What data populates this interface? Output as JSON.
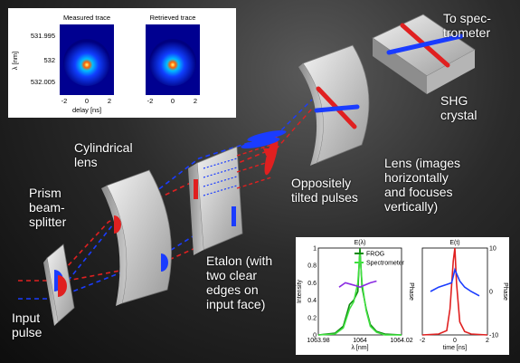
{
  "labels": {
    "to_spectrometer": "To spec-\ntrometer",
    "shg_crystal": "SHG\ncrystal",
    "cylindrical_lens": "Cylindrical\nlens",
    "oppositely_tilted": "Oppositely\ntilted pulses",
    "lens": "Lens (images\nhorizontally\nand focuses\nvertically)",
    "prism": "Prism\nbeam-\nsplitter",
    "etalon": "Etalon (with\ntwo clear\nedges on\ninput face)",
    "input_pulse": "Input\npulse"
  },
  "frog_traces": {
    "measured_title": "Measured trace",
    "retrieved_title": "Retrieved trace",
    "ylabel": "λ [nm]",
    "xlabel": "delay [ns]",
    "yticks": [
      "531.995",
      "532",
      "532.005"
    ],
    "xticks": [
      "-2",
      "0",
      "2"
    ]
  },
  "chart_data": [
    {
      "type": "line",
      "title": "E(λ)",
      "xlabel": "λ [nm]",
      "ylabel": "Intensity",
      "y2label": "Phase",
      "xlim": [
        1063.98,
        1064.02
      ],
      "ylim": [
        0,
        1
      ],
      "xticks": [
        "1063.98",
        "1064",
        "1064.02"
      ],
      "yticks": [
        "0",
        "0.2",
        "0.4",
        "0.6",
        "0.8",
        "1"
      ],
      "legend": "top-right",
      "series": [
        {
          "name": "FROG",
          "color": "#0a8a0a",
          "x": [
            1063.98,
            1063.988,
            1063.992,
            1063.995,
            1063.997,
            1063.999,
            1064.0,
            1064.001,
            1064.003,
            1064.005,
            1064.008,
            1064.012,
            1064.02
          ],
          "values": [
            0.0,
            0.02,
            0.1,
            0.35,
            0.4,
            0.5,
            1.0,
            0.55,
            0.3,
            0.12,
            0.04,
            0.01,
            0.0
          ]
        },
        {
          "name": "Spectrometer",
          "color": "#40e040",
          "x": [
            1063.98,
            1063.988,
            1063.992,
            1063.995,
            1063.997,
            1063.999,
            1064.0,
            1064.001,
            1064.003,
            1064.005,
            1064.008,
            1064.012,
            1064.02
          ],
          "values": [
            0.0,
            0.01,
            0.08,
            0.3,
            0.38,
            0.6,
            0.95,
            0.6,
            0.28,
            0.1,
            0.03,
            0.0,
            0.0
          ]
        },
        {
          "name": "phase",
          "color": "#8a2be2",
          "x": [
            1063.99,
            1063.993,
            1063.996,
            1063.999,
            1064.0,
            1064.002,
            1064.005,
            1064.008
          ],
          "values": [
            0.55,
            0.6,
            0.58,
            0.56,
            0.55,
            0.57,
            0.6,
            0.62
          ]
        }
      ]
    },
    {
      "type": "line",
      "title": "E(t)",
      "xlabel": "time [ns]",
      "y2label": "Phase",
      "xlim": [
        -2,
        2
      ],
      "y2lim": [
        -10,
        10
      ],
      "xticks": [
        "-2",
        "0",
        "2"
      ],
      "y2ticks": [
        "-10",
        "0",
        "10"
      ],
      "series": [
        {
          "color": "#e02020",
          "x": [
            -2,
            -1.0,
            -0.5,
            -0.3,
            -0.1,
            0,
            0.1,
            0.3,
            0.6,
            1.0,
            2
          ],
          "values": [
            0.0,
            0.01,
            0.05,
            0.3,
            0.85,
            1.0,
            0.6,
            0.15,
            0.04,
            0.01,
            0.0
          ]
        },
        {
          "color": "#1a3cff",
          "x": [
            -1.5,
            -1.0,
            -0.5,
            -0.2,
            0,
            0.3,
            0.6,
            1.0,
            1.5
          ],
          "values": [
            0.5,
            0.55,
            0.58,
            0.6,
            0.75,
            0.62,
            0.55,
            0.5,
            0.45
          ]
        }
      ]
    }
  ]
}
